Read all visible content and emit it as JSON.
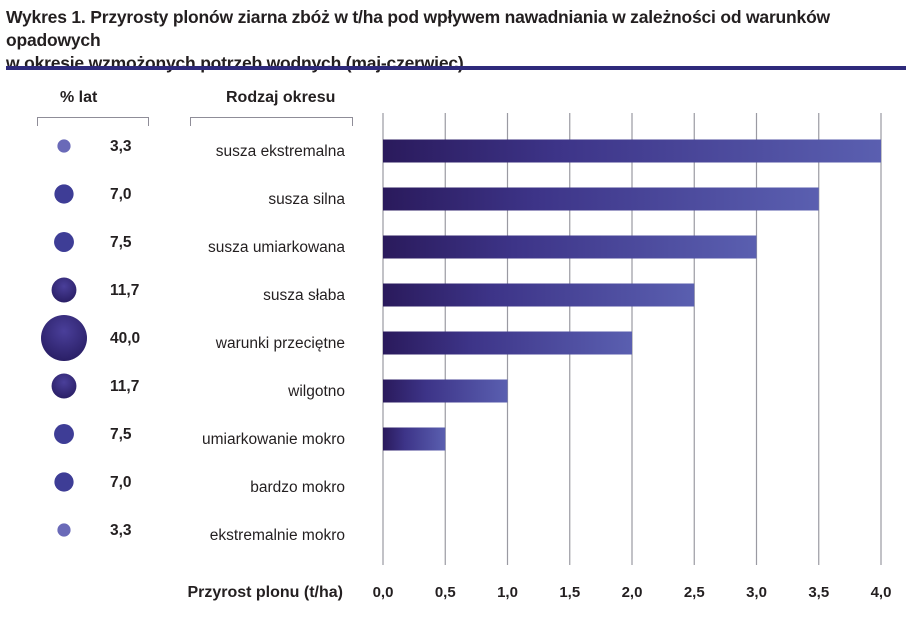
{
  "title_line1": "Wykres 1. Przyrosty plonów ziarna zbóż w t/ha pod wpływem nawadniania w zależności od warunków opadowych",
  "title_line2": "w okresie wzmożonych potrzeb wodnych (maj-czerwiec)",
  "col_pct_header": "% lat",
  "col_period_header": "Rodzaj okresu",
  "colors": {
    "rule": "#2e2a7b",
    "bar_dark": "#2a1a5c",
    "bar_light": "#5a5fb0",
    "bubble_dark": "#241b56",
    "bubble_light": "#6a6ab8"
  },
  "chart_data": {
    "type": "bar",
    "orientation": "horizontal",
    "categories": [
      "susza ekstremalna",
      "susza silna",
      "susza umiarkowana",
      "susza słaba",
      "warunki przeciętne",
      "wilgotno",
      "umiarkowanie mokro",
      "bardzo mokro",
      "ekstremalnie mokro"
    ],
    "values": [
      4.0,
      3.5,
      3.0,
      2.5,
      2.0,
      1.0,
      0.5,
      0,
      0
    ],
    "percent_years": [
      "3,3",
      "7,0",
      "7,5",
      "11,7",
      "40,0",
      "11,7",
      "7,5",
      "7,0",
      "3,3"
    ],
    "percent_years_values": [
      3.3,
      7.0,
      7.5,
      11.7,
      40.0,
      11.7,
      7.5,
      7.0,
      3.3
    ],
    "xlabel": "Przyrost plonu (t/ha)",
    "xlim": [
      0,
      4
    ],
    "xticks": [
      "0,0",
      "0,5",
      "1,0",
      "1,5",
      "2,0",
      "2,5",
      "3,0",
      "3,5",
      "4,0"
    ],
    "grid": true,
    "legend": "none"
  }
}
